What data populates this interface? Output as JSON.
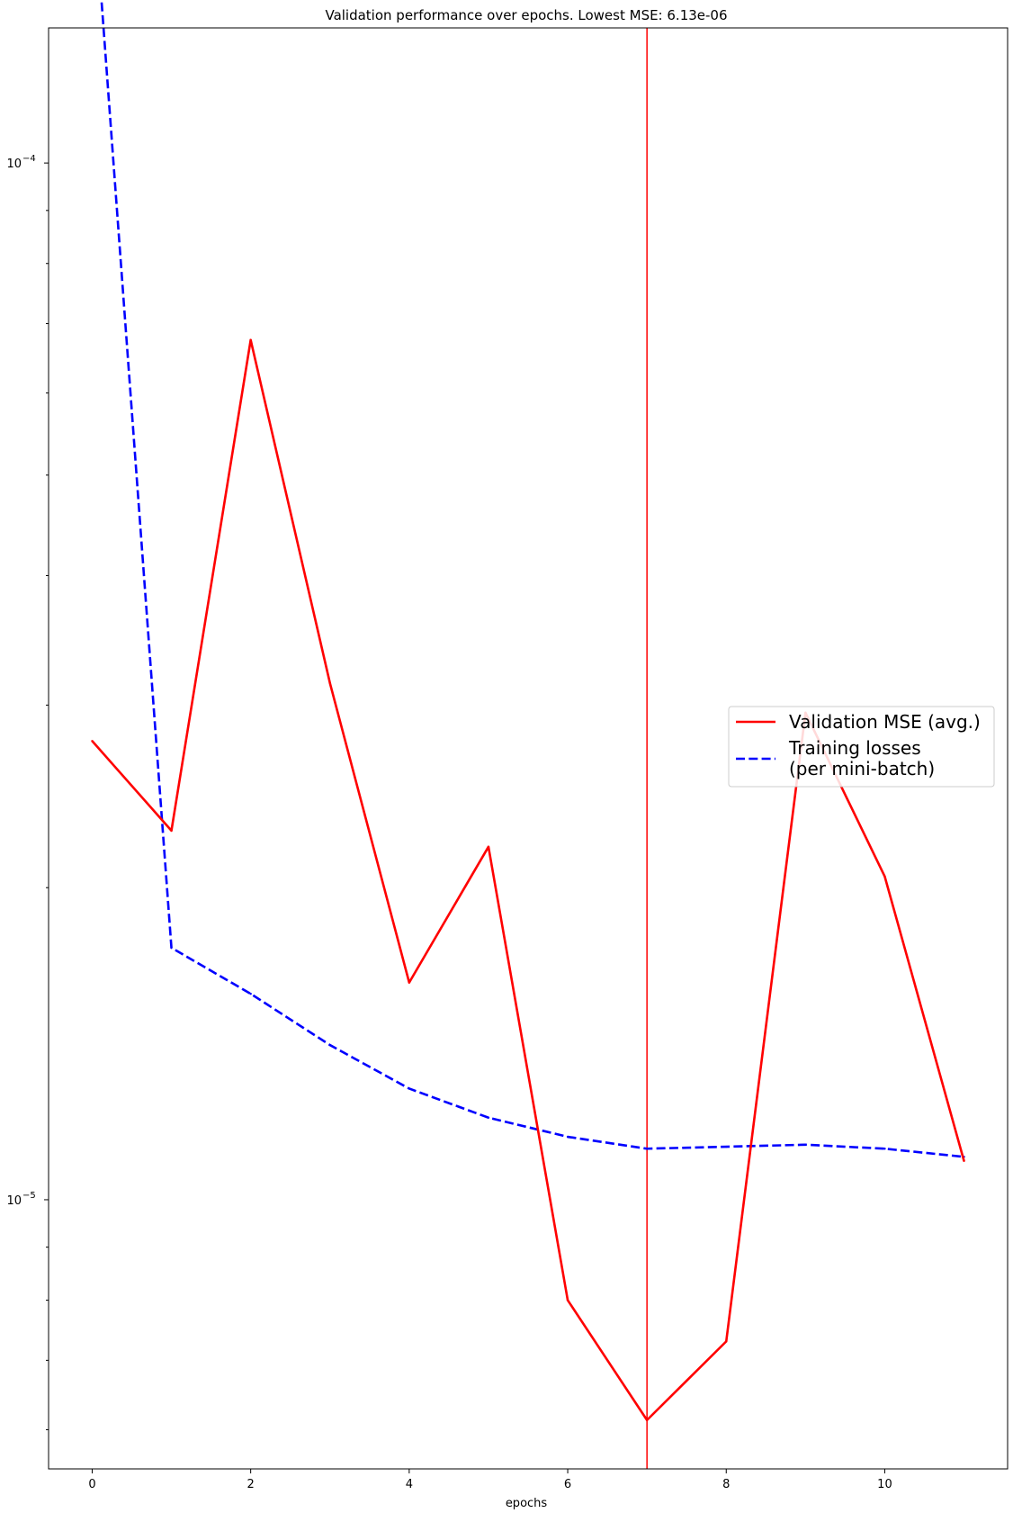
{
  "chart_data": {
    "type": "line",
    "title": "Validation performance over epochs. Lowest MSE: 6.13e-06",
    "xlabel": "epochs",
    "ylabel": "",
    "y_scale": "log",
    "xlim": [
      -0.55,
      11.55
    ],
    "ylim": [
      5.5e-06,
      0.000135
    ],
    "x_ticks": [
      0,
      2,
      4,
      6,
      8,
      10
    ],
    "x_tick_labels": [
      "0",
      "2",
      "4",
      "6",
      "8",
      "10"
    ],
    "y_major_ticks": [
      1e-05,
      0.0001
    ],
    "y_major_tick_labels": [
      {
        "base": "10",
        "exp": "−5"
      },
      {
        "base": "10",
        "exp": "−4"
      }
    ],
    "y_minor_ticks": [
      6e-06,
      7e-06,
      8e-06,
      9e-06,
      2e-05,
      3e-05,
      4e-05,
      5e-05,
      6e-05,
      7e-05,
      8e-05,
      9e-05
    ],
    "x": [
      0,
      1,
      2,
      3,
      4,
      5,
      6,
      7,
      8,
      9,
      10,
      11
    ],
    "series": [
      {
        "name": "Validation MSE (avg.)",
        "color": "#ff0000",
        "style": "solid",
        "values": [
          2.77e-05,
          2.27e-05,
          6.75e-05,
          3.15e-05,
          1.62e-05,
          2.19e-05,
          8e-06,
          6.13e-06,
          7.3e-06,
          2.95e-05,
          2.05e-05,
          1.09e-05
        ]
      },
      {
        "name": "Training losses\n(per mini-batch)",
        "color": "#0000ff",
        "style": "dashed",
        "values": [
          0.00019,
          1.75e-05,
          1.58e-05,
          1.41e-05,
          1.28e-05,
          1.2e-05,
          1.15e-05,
          1.12e-05,
          1.125e-05,
          1.13e-05,
          1.12e-05,
          1.1e-05
        ]
      }
    ],
    "vline": {
      "x": 7,
      "color": "#ff0000"
    },
    "legend_position": "center-right",
    "grid": false
  }
}
